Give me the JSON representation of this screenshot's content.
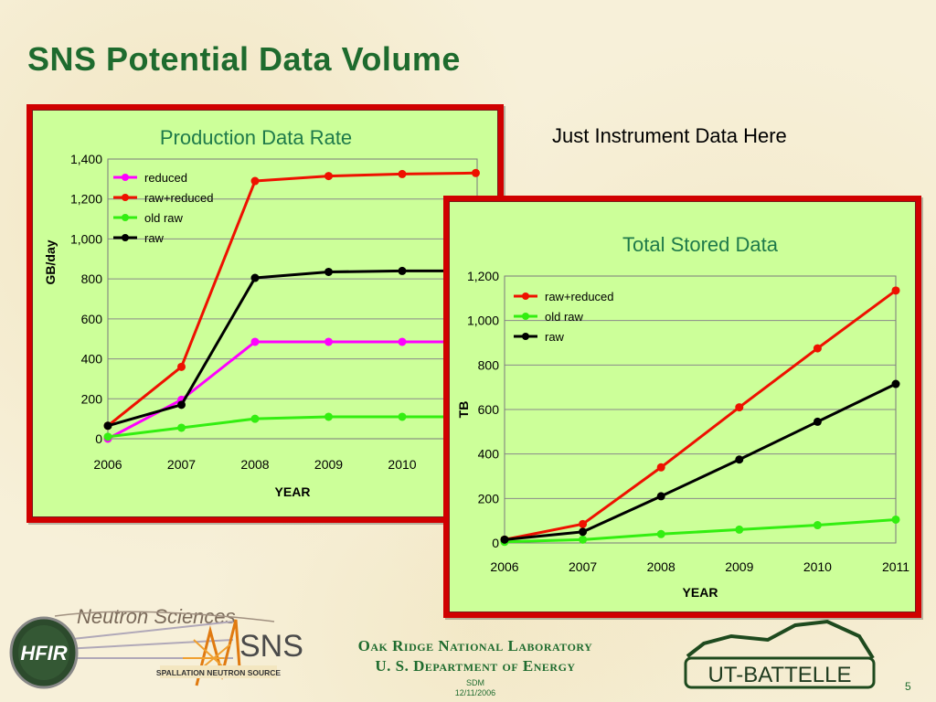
{
  "slide": {
    "title": "SNS Potential Data Volume",
    "note": "Just Instrument Data Here",
    "page_number": "5"
  },
  "footer": {
    "org_line1": "Oak Ridge National Laboratory",
    "org_line2": "U. S. Department of Energy",
    "sdm": "SDM",
    "date": "12/11/2006",
    "logos": {
      "neutron_sciences": "Neutron Sciences",
      "hfir": "HFIR",
      "sns": "SNS",
      "sns_sub": "SPALLATION NEUTRON SOURCE",
      "ut_battelle": "UT-BATTELLE"
    }
  },
  "colors": {
    "title": "#1e6b2e",
    "frame": "#d00000",
    "plot_bg": "#ccff99",
    "reduced": "#ff00ff",
    "raw_reduced": "#ee1100",
    "old_raw": "#33ee11",
    "raw": "#000000"
  },
  "chart_data": [
    {
      "type": "line",
      "title": "Production Data Rate",
      "xlabel": "YEAR",
      "ylabel": "GB/day",
      "x": [
        2006,
        2007,
        2008,
        2009,
        2010,
        2011
      ],
      "x_tick_labels": [
        "2006",
        "2007",
        "2008",
        "2009",
        "2010"
      ],
      "ylim": [
        0,
        1400
      ],
      "y_ticks": [
        0,
        200,
        400,
        600,
        800,
        1000,
        1200,
        1400
      ],
      "y_tick_labels": [
        "0",
        "200",
        "400",
        "600",
        "800",
        "1,000",
        "1,200",
        "1,400"
      ],
      "grid": true,
      "legend_position": "top-left",
      "series": [
        {
          "name": "reduced",
          "color": "#ff00ff",
          "values": [
            0,
            195,
            485,
            485,
            485,
            485
          ]
        },
        {
          "name": "raw+reduced",
          "color": "#ee1100",
          "values": [
            65,
            360,
            1290,
            1315,
            1325,
            1330
          ]
        },
        {
          "name": "old raw",
          "color": "#33ee11",
          "values": [
            10,
            55,
            100,
            110,
            110,
            110
          ]
        },
        {
          "name": "raw",
          "color": "#000000",
          "values": [
            65,
            170,
            805,
            835,
            840,
            840
          ]
        }
      ]
    },
    {
      "type": "line",
      "title": "Total Stored Data",
      "xlabel": "YEAR",
      "ylabel": "TB",
      "x": [
        2006,
        2007,
        2008,
        2009,
        2010,
        2011
      ],
      "x_tick_labels": [
        "2006",
        "2007",
        "2008",
        "2009",
        "2010",
        "2011"
      ],
      "ylim": [
        0,
        1200
      ],
      "y_ticks": [
        0,
        200,
        400,
        600,
        800,
        1000,
        1200
      ],
      "y_tick_labels": [
        "0",
        "200",
        "400",
        "600",
        "800",
        "1,000",
        "1,200"
      ],
      "grid": true,
      "legend_position": "top-left",
      "series": [
        {
          "name": "raw+reduced",
          "color": "#ee1100",
          "values": [
            15,
            85,
            340,
            610,
            875,
            1135
          ]
        },
        {
          "name": "old raw",
          "color": "#33ee11",
          "values": [
            5,
            15,
            40,
            60,
            80,
            105
          ]
        },
        {
          "name": "raw",
          "color": "#000000",
          "values": [
            15,
            50,
            210,
            375,
            545,
            715
          ]
        }
      ]
    }
  ]
}
